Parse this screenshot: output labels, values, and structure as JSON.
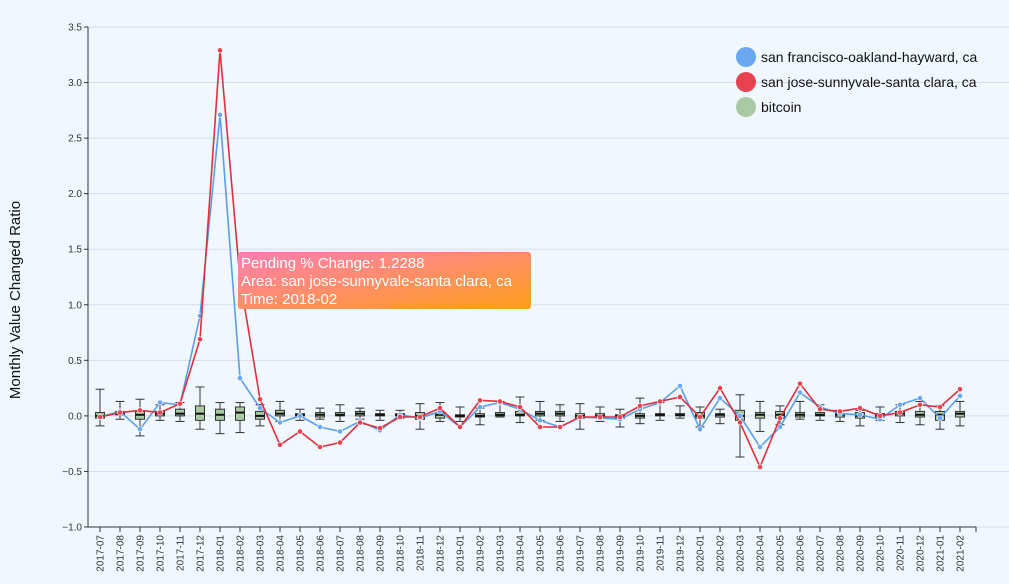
{
  "chart_data": {
    "type": "line",
    "ylabel": "Monthly Value Changed Ratio",
    "xlabel": "",
    "ylim": [
      -1.0,
      3.5
    ],
    "yticks": [
      -1.0,
      -0.5,
      0.0,
      0.5,
      1.0,
      1.5,
      2.0,
      2.5,
      3.0,
      3.5
    ],
    "ytick_labels": [
      "−1.0",
      "−0.5",
      "0.0",
      "0.5",
      "1.0",
      "1.5",
      "2.0",
      "2.5",
      "3.0",
      "3.5"
    ],
    "grid": true,
    "legend_position": "top-right",
    "categories": [
      "2017-07",
      "2017-08",
      "2017-09",
      "2017-10",
      "2017-11",
      "2017-12",
      "2018-01",
      "2018-02",
      "2018-03",
      "2018-04",
      "2018-05",
      "2018-06",
      "2018-07",
      "2018-08",
      "2018-09",
      "2018-10",
      "2018-11",
      "2018-12",
      "2019-01",
      "2019-02",
      "2019-03",
      "2019-04",
      "2019-05",
      "2019-06",
      "2019-07",
      "2019-08",
      "2019-09",
      "2019-10",
      "2019-11",
      "2019-12",
      "2020-01",
      "2020-02",
      "2020-03",
      "2020-04",
      "2020-05",
      "2020-06",
      "2020-07",
      "2020-08",
      "2020-09",
      "2020-10",
      "2020-11",
      "2020-12",
      "2021-01",
      "2021-02"
    ],
    "series": [
      {
        "name": "san francisco-oakland-hayward, ca",
        "color": "#5b9ee9",
        "marker_color": "#6aa7f0",
        "values": [
          -0.01,
          0.04,
          -0.12,
          0.12,
          0.1,
          0.9,
          2.71,
          0.34,
          0.07,
          -0.06,
          0.0,
          -0.1,
          -0.14,
          -0.05,
          -0.13,
          0.01,
          -0.02,
          0.04,
          -0.1,
          0.08,
          0.12,
          0.06,
          -0.04,
          -0.1,
          -0.01,
          -0.02,
          -0.03,
          0.06,
          0.12,
          0.27,
          -0.12,
          0.16,
          0.0,
          -0.28,
          -0.1,
          0.21,
          0.08,
          0.02,
          0.01,
          -0.03,
          0.1,
          0.16,
          -0.02,
          0.18
        ]
      },
      {
        "name": "san jose-sunnyvale-santa clara, ca",
        "color": "#e0303c",
        "marker_color": "#e84150",
        "values": [
          -0.01,
          0.03,
          0.05,
          0.03,
          0.11,
          0.69,
          3.29,
          1.23,
          0.15,
          -0.26,
          -0.14,
          -0.28,
          -0.24,
          -0.06,
          -0.11,
          -0.01,
          -0.01,
          0.07,
          -0.1,
          0.14,
          0.13,
          0.08,
          -0.1,
          -0.1,
          -0.01,
          -0.01,
          -0.01,
          0.09,
          0.13,
          0.17,
          -0.01,
          0.25,
          -0.06,
          -0.46,
          -0.02,
          0.29,
          0.06,
          0.04,
          0.07,
          0.0,
          0.03,
          0.1,
          0.08,
          0.24
        ]
      }
    ],
    "boxplot": {
      "name": "bitcoin",
      "color": "#a8c9a4",
      "boxes": [
        {
          "min": -0.09,
          "q1": -0.02,
          "med": 0.0,
          "q3": 0.03,
          "max": 0.24
        },
        {
          "min": -0.03,
          "q1": 0.01,
          "med": 0.02,
          "q3": 0.04,
          "max": 0.13
        },
        {
          "min": -0.18,
          "q1": -0.03,
          "med": 0.01,
          "q3": 0.04,
          "max": 0.15
        },
        {
          "min": -0.04,
          "q1": 0.0,
          "med": 0.02,
          "q3": 0.04,
          "max": 0.1
        },
        {
          "min": -0.05,
          "q1": 0.0,
          "med": 0.02,
          "q3": 0.06,
          "max": 0.12
        },
        {
          "min": -0.12,
          "q1": -0.04,
          "med": 0.02,
          "q3": 0.09,
          "max": 0.26
        },
        {
          "min": -0.16,
          "q1": -0.04,
          "med": 0.01,
          "q3": 0.06,
          "max": 0.12
        },
        {
          "min": -0.15,
          "q1": -0.04,
          "med": 0.03,
          "q3": 0.08,
          "max": 0.12
        },
        {
          "min": -0.09,
          "q1": -0.03,
          "med": 0.0,
          "q3": 0.04,
          "max": 0.1
        },
        {
          "min": -0.05,
          "q1": 0.0,
          "med": 0.02,
          "q3": 0.05,
          "max": 0.13
        },
        {
          "min": -0.04,
          "q1": 0.0,
          "med": 0.01,
          "q3": 0.02,
          "max": 0.06
        },
        {
          "min": -0.03,
          "q1": -0.01,
          "med": 0.01,
          "q3": 0.03,
          "max": 0.07
        },
        {
          "min": -0.05,
          "q1": 0.0,
          "med": 0.01,
          "q3": 0.03,
          "max": 0.1
        },
        {
          "min": -0.03,
          "q1": 0.0,
          "med": 0.02,
          "q3": 0.04,
          "max": 0.07
        },
        {
          "min": -0.04,
          "q1": 0.0,
          "med": 0.01,
          "q3": 0.02,
          "max": 0.05
        },
        {
          "min": -0.02,
          "q1": 0.0,
          "med": 0.01,
          "q3": 0.02,
          "max": 0.05
        },
        {
          "min": -0.12,
          "q1": -0.03,
          "med": 0.0,
          "q3": 0.03,
          "max": 0.11
        },
        {
          "min": -0.05,
          "q1": -0.02,
          "med": 0.01,
          "q3": 0.03,
          "max": 0.12
        },
        {
          "min": -0.05,
          "q1": -0.01,
          "med": 0.0,
          "q3": 0.01,
          "max": 0.08
        },
        {
          "min": -0.08,
          "q1": -0.01,
          "med": 0.0,
          "q3": 0.02,
          "max": 0.07
        },
        {
          "min": -0.01,
          "q1": 0.0,
          "med": 0.01,
          "q3": 0.03,
          "max": 0.13
        },
        {
          "min": -0.06,
          "q1": 0.0,
          "med": 0.01,
          "q3": 0.04,
          "max": 0.17
        },
        {
          "min": -0.04,
          "q1": 0.0,
          "med": 0.02,
          "q3": 0.04,
          "max": 0.13
        },
        {
          "min": -0.05,
          "q1": 0.0,
          "med": 0.02,
          "q3": 0.04,
          "max": 0.1
        },
        {
          "min": -0.12,
          "q1": -0.02,
          "med": 0.0,
          "q3": 0.02,
          "max": 0.11
        },
        {
          "min": -0.05,
          "q1": -0.01,
          "med": 0.0,
          "q3": 0.02,
          "max": 0.08
        },
        {
          "min": -0.1,
          "q1": -0.02,
          "med": 0.0,
          "q3": 0.01,
          "max": 0.06
        },
        {
          "min": -0.07,
          "q1": -0.02,
          "med": 0.0,
          "q3": 0.02,
          "max": 0.16
        },
        {
          "min": -0.04,
          "q1": 0.0,
          "med": 0.01,
          "q3": 0.02,
          "max": 0.12
        },
        {
          "min": -0.02,
          "q1": 0.0,
          "med": 0.01,
          "q3": 0.02,
          "max": 0.09
        },
        {
          "min": -0.1,
          "q1": -0.02,
          "med": 0.0,
          "q3": 0.03,
          "max": 0.08
        },
        {
          "min": -0.07,
          "q1": -0.01,
          "med": 0.01,
          "q3": 0.02,
          "max": 0.06
        },
        {
          "min": -0.37,
          "q1": -0.04,
          "med": 0.0,
          "q3": 0.05,
          "max": 0.19
        },
        {
          "min": -0.14,
          "q1": -0.02,
          "med": 0.01,
          "q3": 0.03,
          "max": 0.13
        },
        {
          "min": -0.08,
          "q1": -0.02,
          "med": 0.01,
          "q3": 0.04,
          "max": 0.09
        },
        {
          "min": -0.03,
          "q1": -0.01,
          "med": 0.01,
          "q3": 0.03,
          "max": 0.13
        },
        {
          "min": -0.04,
          "q1": 0.0,
          "med": 0.01,
          "q3": 0.03,
          "max": 0.1
        },
        {
          "min": -0.05,
          "q1": -0.01,
          "med": 0.01,
          "q3": 0.02,
          "max": 0.05
        },
        {
          "min": -0.09,
          "q1": -0.02,
          "med": 0.0,
          "q3": 0.03,
          "max": 0.05
        },
        {
          "min": -0.04,
          "q1": -0.01,
          "med": 0.01,
          "q3": 0.02,
          "max": 0.08
        },
        {
          "min": -0.06,
          "q1": 0.0,
          "med": 0.02,
          "q3": 0.04,
          "max": 0.1
        },
        {
          "min": -0.08,
          "q1": -0.01,
          "med": 0.01,
          "q3": 0.04,
          "max": 0.13
        },
        {
          "min": -0.12,
          "q1": -0.04,
          "med": 0.01,
          "q3": 0.04,
          "max": 0.09
        },
        {
          "min": -0.09,
          "q1": -0.01,
          "med": 0.02,
          "q3": 0.04,
          "max": 0.13
        }
      ]
    },
    "tooltip": {
      "lines": [
        "Pending % Change: 1.2288",
        "Area: san jose-sunnyvale-santa clara, ca",
        "Time: 2018-02"
      ],
      "gradient_start": "#ff7eb3",
      "gradient_end": "#ff9f1a"
    }
  }
}
